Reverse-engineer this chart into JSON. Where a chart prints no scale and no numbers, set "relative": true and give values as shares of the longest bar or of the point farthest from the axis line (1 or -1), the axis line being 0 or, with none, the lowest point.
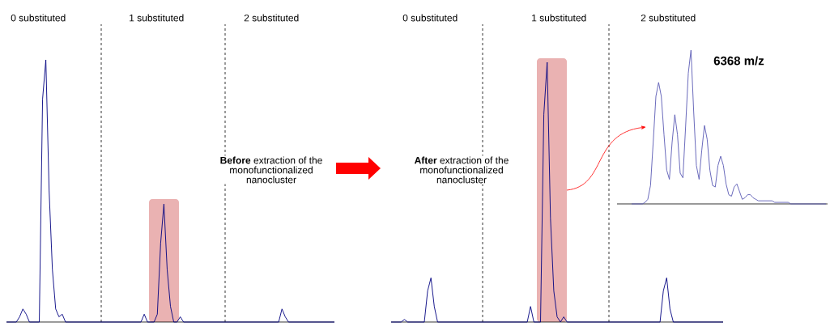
{
  "chart_data": [
    {
      "type": "line",
      "relative": true,
      "color": "#000080",
      "categories": [
        null,
        null,
        null,
        null,
        null,
        null,
        null,
        null,
        null,
        null,
        null,
        null,
        null,
        null,
        null,
        null,
        null,
        null,
        null,
        null,
        null,
        null,
        null,
        null,
        null,
        null,
        null,
        null,
        null,
        null,
        null,
        null,
        null,
        null,
        null,
        null,
        null,
        null,
        null,
        null,
        null,
        null,
        null,
        null,
        null,
        null,
        null,
        null,
        null,
        null,
        null,
        null,
        null,
        null,
        null,
        null,
        null,
        null,
        null,
        null,
        null,
        null,
        null,
        null,
        null,
        null,
        null,
        null,
        null,
        null,
        null,
        null,
        null,
        null,
        null,
        null,
        null,
        null,
        null,
        null,
        null,
        null,
        null,
        null,
        null,
        null,
        null,
        null,
        null,
        null,
        null,
        null,
        null,
        null,
        null,
        null,
        null,
        null,
        null,
        null,
        null
      ],
      "values": [
        0,
        0,
        0,
        0,
        0.02,
        0.05,
        0.03,
        0,
        0,
        0,
        0,
        0.85,
        1,
        0.5,
        0.2,
        0.05,
        0.02,
        0.03,
        0,
        0,
        0,
        0,
        0,
        0,
        0,
        0,
        0,
        0,
        0,
        0,
        0,
        0,
        0,
        0,
        0,
        0,
        0,
        0,
        0,
        0,
        0,
        0,
        0.03,
        0,
        0,
        0,
        0.03,
        0.3,
        0.45,
        0.2,
        0.06,
        0,
        0,
        0.02,
        0,
        0,
        0,
        0,
        0,
        0,
        0,
        0,
        0,
        0,
        0,
        0,
        0,
        0,
        0,
        0,
        0,
        0,
        0,
        0,
        0,
        0,
        0,
        0,
        0,
        0,
        0,
        0,
        0,
        0,
        0.05,
        0.02,
        0,
        0,
        0,
        0,
        0,
        0,
        0,
        0,
        0,
        0,
        0,
        0,
        0,
        0,
        0
      ],
      "annotations": [
        "0 substituted",
        "1 substituted",
        "2 substituted",
        "**Before** extraction of the monofunctionalized nanocluster"
      ]
    },
    {
      "type": "line",
      "relative": true,
      "color": "#000080",
      "categories": [
        null,
        null,
        null,
        null,
        null,
        null,
        null,
        null,
        null,
        null,
        null,
        null,
        null,
        null,
        null,
        null,
        null,
        null,
        null,
        null,
        null,
        null,
        null,
        null,
        null,
        null,
        null,
        null,
        null,
        null,
        null,
        null,
        null,
        null,
        null,
        null,
        null,
        null,
        null,
        null,
        null,
        null,
        null,
        null,
        null,
        null,
        null,
        null,
        null,
        null,
        null,
        null,
        null,
        null,
        null,
        null,
        null,
        null,
        null,
        null,
        null,
        null,
        null,
        null,
        null,
        null,
        null,
        null,
        null,
        null,
        null,
        null,
        null,
        null,
        null,
        null,
        null,
        null,
        null,
        null,
        null,
        null,
        null,
        null,
        null,
        null,
        null,
        null,
        null,
        null,
        null,
        null,
        null,
        null,
        null,
        null,
        null,
        null,
        null,
        null,
        null
      ],
      "values": [
        0,
        0,
        0,
        0,
        0.01,
        0,
        0,
        0,
        0,
        0,
        0,
        0.12,
        0.17,
        0.06,
        0,
        0,
        0,
        0,
        0,
        0,
        0,
        0,
        0,
        0,
        0,
        0,
        0,
        0,
        0,
        0,
        0,
        0,
        0,
        0,
        0,
        0,
        0,
        0,
        0,
        0,
        0,
        0,
        0.06,
        0,
        0,
        0,
        0.8,
        1,
        0.4,
        0.12,
        0.02,
        0,
        0.02,
        0,
        0,
        0,
        0,
        0,
        0,
        0,
        0,
        0,
        0,
        0,
        0,
        0,
        0,
        0,
        0,
        0,
        0,
        0,
        0,
        0,
        0,
        0,
        0,
        0,
        0,
        0,
        0,
        0,
        0.12,
        0.17,
        0.05,
        0,
        0,
        0,
        0,
        0,
        0,
        0,
        0,
        0,
        0,
        0,
        0,
        0,
        0,
        0,
        0
      ],
      "annotations": [
        "0 substituted",
        "1 substituted",
        "2 substituted",
        "**After** extraction of the monofunctionalized nanocluster"
      ]
    },
    {
      "type": "line",
      "relative": true,
      "color": "#5a5ab4",
      "categories": [
        null,
        null,
        null,
        null,
        null,
        null,
        null,
        null,
        null,
        null,
        null,
        null,
        null,
        null,
        null,
        null,
        null,
        null,
        null,
        null,
        null,
        null,
        null,
        null,
        null,
        null,
        null,
        null,
        null,
        null,
        null,
        null,
        null,
        null,
        null,
        null,
        null,
        null,
        null,
        null,
        null,
        null,
        null,
        null,
        null,
        null,
        null,
        null,
        null,
        null,
        null,
        null,
        null,
        null,
        null,
        null,
        null,
        null,
        null,
        null,
        null,
        null,
        null,
        null,
        null,
        null,
        null,
        null,
        null,
        null,
        null,
        null,
        null
      ],
      "values": [
        0,
        0,
        0,
        0,
        0,
        0.01,
        0.03,
        0.12,
        0.4,
        0.7,
        0.79,
        0.7,
        0.45,
        0.22,
        0.16,
        0.4,
        0.58,
        0.45,
        0.2,
        0.17,
        0.5,
        0.85,
        1,
        0.6,
        0.25,
        0.16,
        0.35,
        0.51,
        0.42,
        0.22,
        0.12,
        0.11,
        0.25,
        0.31,
        0.25,
        0.13,
        0.06,
        0.05,
        0.11,
        0.13,
        0.08,
        0.03,
        0.04,
        0.06,
        0.06,
        0.04,
        0.03,
        0.02,
        0.02,
        0.02,
        0.02,
        0.02,
        0.02,
        0.01,
        0.01,
        0.01,
        0.01,
        0.01,
        0.01,
        0,
        0,
        0,
        0,
        0,
        0,
        0,
        0,
        0,
        0,
        0,
        0,
        0,
        0
      ],
      "annotations": [
        "6368 m/z"
      ]
    }
  ]
}
